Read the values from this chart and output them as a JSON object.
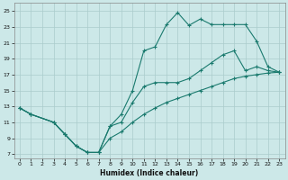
{
  "xlabel": "Humidex (Indice chaleur)",
  "bg_color": "#cce8e8",
  "grid_color": "#aacccc",
  "line_color": "#1a7a6e",
  "xlim": [
    -0.5,
    23.5
  ],
  "ylim": [
    6.5,
    26
  ],
  "xticks": [
    0,
    1,
    2,
    3,
    4,
    5,
    6,
    7,
    8,
    9,
    10,
    11,
    12,
    13,
    14,
    15,
    16,
    17,
    18,
    19,
    20,
    21,
    22,
    23
  ],
  "yticks": [
    7,
    9,
    11,
    13,
    15,
    17,
    19,
    21,
    23,
    25
  ],
  "curve_upper": {
    "x": [
      0,
      1,
      3,
      4,
      5,
      6,
      7,
      8,
      9,
      10,
      11,
      12,
      13,
      14,
      15,
      16,
      17,
      18,
      19,
      20,
      21,
      22,
      23
    ],
    "y": [
      12.8,
      12.0,
      11.0,
      9.5,
      8.0,
      7.2,
      7.2,
      10.5,
      12.0,
      15.0,
      20.0,
      20.5,
      23.3,
      24.8,
      23.2,
      24.0,
      23.3,
      23.3,
      23.3,
      23.3,
      21.2,
      18.0,
      17.3
    ]
  },
  "curve_mid": {
    "x": [
      0,
      1,
      3,
      4,
      5,
      6,
      7,
      8,
      9,
      10,
      11,
      12,
      13,
      14,
      15,
      16,
      17,
      18,
      19,
      20,
      21,
      22,
      23
    ],
    "y": [
      12.8,
      12.0,
      11.0,
      9.5,
      8.0,
      7.2,
      7.2,
      10.5,
      11.0,
      13.5,
      15.5,
      16.0,
      16.0,
      16.0,
      16.5,
      17.5,
      18.5,
      19.5,
      20.0,
      17.5,
      18.0,
      17.5,
      17.3
    ]
  },
  "curve_lower": {
    "x": [
      0,
      1,
      3,
      4,
      5,
      6,
      7,
      8,
      9,
      10,
      11,
      12,
      13,
      14,
      15,
      16,
      17,
      18,
      19,
      20,
      21,
      22,
      23
    ],
    "y": [
      12.8,
      12.0,
      11.0,
      9.5,
      8.0,
      7.2,
      7.2,
      9.0,
      9.8,
      11.0,
      12.0,
      12.8,
      13.5,
      14.0,
      14.5,
      15.0,
      15.5,
      16.0,
      16.5,
      16.8,
      17.0,
      17.2,
      17.3
    ]
  }
}
